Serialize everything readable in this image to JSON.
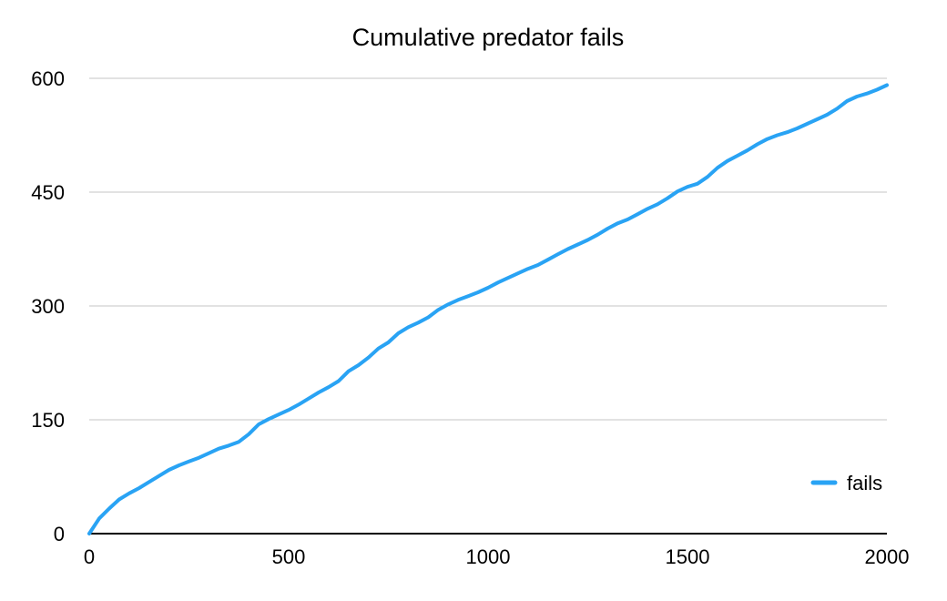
{
  "chart_data": {
    "type": "line",
    "title": "Cumulative predator fails",
    "xlabel": "",
    "ylabel": "",
    "xlim": [
      0,
      2000
    ],
    "ylim": [
      0,
      600
    ],
    "x_ticks": [
      0,
      500,
      1000,
      1500,
      2000
    ],
    "y_ticks": [
      0,
      150,
      300,
      450,
      600
    ],
    "grid": "horizontal",
    "legend_position": "bottom-right",
    "series": [
      {
        "name": "fails",
        "color": "#29a3f4",
        "x": [
          0,
          25,
          50,
          75,
          100,
          125,
          150,
          175,
          200,
          225,
          250,
          275,
          300,
          325,
          350,
          375,
          400,
          425,
          450,
          475,
          500,
          525,
          550,
          575,
          600,
          625,
          650,
          675,
          700,
          725,
          750,
          775,
          800,
          825,
          850,
          875,
          900,
          925,
          950,
          975,
          1000,
          1025,
          1050,
          1075,
          1100,
          1125,
          1150,
          1175,
          1200,
          1225,
          1250,
          1275,
          1300,
          1325,
          1350,
          1375,
          1400,
          1425,
          1450,
          1475,
          1500,
          1525,
          1550,
          1575,
          1600,
          1625,
          1650,
          1675,
          1700,
          1725,
          1750,
          1775,
          1800,
          1825,
          1850,
          1875,
          1900,
          1925,
          1950,
          1975,
          2000
        ],
        "y": [
          0,
          20,
          33,
          45,
          53,
          60,
          68,
          76,
          84,
          90,
          95,
          100,
          106,
          112,
          116,
          121,
          131,
          144,
          151,
          157,
          163,
          170,
          178,
          186,
          193,
          201,
          214,
          222,
          232,
          244,
          252,
          264,
          272,
          278,
          285,
          295,
          302,
          308,
          313,
          318,
          324,
          331,
          337,
          343,
          349,
          354,
          361,
          368,
          375,
          381,
          387,
          394,
          402,
          409,
          414,
          421,
          428,
          434,
          442,
          451,
          457,
          461,
          470,
          482,
          491,
          498,
          505,
          513,
          520,
          525,
          529,
          534,
          540,
          546,
          552,
          560,
          570,
          576,
          580,
          585,
          591
        ]
      }
    ]
  }
}
